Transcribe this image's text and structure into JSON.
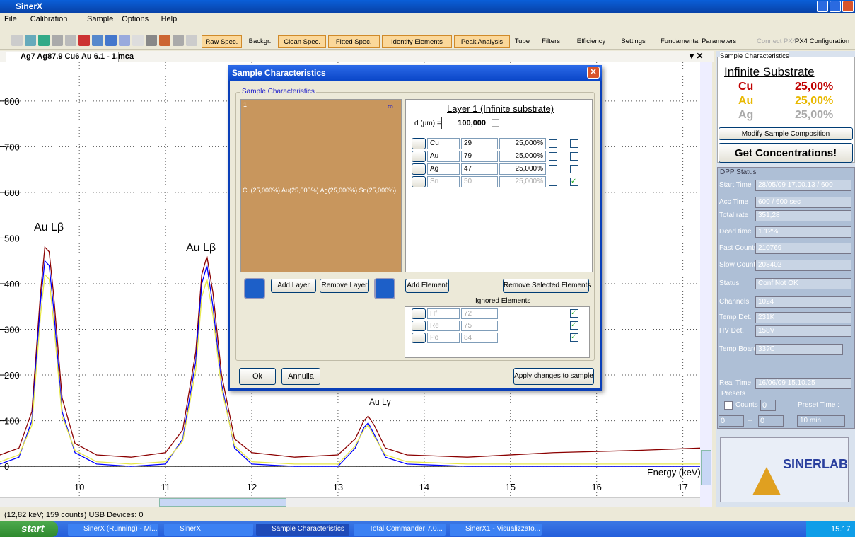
{
  "window": {
    "title": "SinerX"
  },
  "menu": [
    "File",
    "Calibration",
    "Sample",
    "Options",
    "Help"
  ],
  "toolbar": [
    "Raw Spec.",
    "Backgr.",
    "Clean Spec.",
    "Fitted Spec.",
    "Identify Elements",
    "Peak Analysis",
    "Tube",
    "Filters",
    "Efficiency",
    "Settings",
    "Fundamental Parameters"
  ],
  "toolbar_right": [
    "Connect PX4",
    "PX4 Configuration"
  ],
  "tab": {
    "title": "Ag7 Ag87.9 Cu6 Au 6.1 - 1.mca"
  },
  "chart_data": {
    "type": "line",
    "x_label": "Energy (keV)",
    "annotations": [
      "Au Lβ",
      "Au Lβ",
      "Au Lγ"
    ],
    "xlim": [
      9.08,
      17.2
    ],
    "xticks": [
      10,
      11,
      12,
      13,
      14,
      15,
      16,
      17
    ],
    "ylim": [
      -68,
      885
    ],
    "yticks": [
      0,
      100,
      200,
      300,
      400,
      500,
      600,
      700,
      800
    ],
    "grid": true,
    "x": [
      9.08,
      9.3,
      9.45,
      9.55,
      9.6,
      9.65,
      9.7,
      9.8,
      9.95,
      10.2,
      10.6,
      11.0,
      11.2,
      11.35,
      11.42,
      11.48,
      11.55,
      11.65,
      11.8,
      12.0,
      12.5,
      13.0,
      13.2,
      13.3,
      13.35,
      13.42,
      13.55,
      13.8,
      14.5,
      15.5,
      16.5,
      17.2
    ],
    "series": [
      {
        "color": "#8b0000",
        "values": [
          25,
          40,
          120,
          380,
          480,
          470,
          380,
          150,
          50,
          25,
          20,
          30,
          80,
          250,
          420,
          460,
          380,
          200,
          60,
          30,
          20,
          25,
          60,
          100,
          110,
          90,
          40,
          25,
          20,
          30,
          35,
          40
        ]
      },
      {
        "color": "#0000ff",
        "values": [
          5,
          20,
          100,
          360,
          450,
          440,
          350,
          120,
          30,
          5,
          0,
          5,
          60,
          230,
          400,
          440,
          350,
          180,
          40,
          5,
          0,
          0,
          40,
          85,
          95,
          70,
          20,
          5,
          0,
          0,
          0,
          0
        ]
      },
      {
        "color": "#e8e84a",
        "values": [
          10,
          25,
          90,
          330,
          420,
          410,
          320,
          110,
          35,
          10,
          5,
          10,
          55,
          210,
          370,
          410,
          330,
          170,
          45,
          10,
          5,
          5,
          45,
          80,
          90,
          65,
          25,
          10,
          5,
          5,
          5,
          5
        ]
      }
    ]
  },
  "dialog": {
    "title": "Sample Characteristics",
    "group": "Sample Characteristics",
    "layer_index": "1",
    "infinity": "∞",
    "layer_text": "Cu(25,000%) Au(25,000%) Ag(25,000%) Sn(25,000%)",
    "layer_title": "Layer 1 (Infinite substrate)",
    "thickness_label": "d (μm) =",
    "thickness": "100,000",
    "elements": [
      [
        "Cu",
        29,
        "25,000%"
      ],
      [
        "Au",
        79,
        "25,000%"
      ],
      [
        "Ag",
        47,
        "25,000%"
      ],
      [
        "Sn",
        50,
        "25,000%"
      ]
    ],
    "add_layer": "Add Layer",
    "remove_layer": "Remove Layer",
    "add_element": "Add Element",
    "remove_elements": "Remove Selected Elements",
    "ignored_title": "Ignored Elements",
    "ignored": [
      [
        "Hf",
        72
      ],
      [
        "Re",
        75
      ],
      [
        "Po",
        84
      ]
    ],
    "ok": "Ok",
    "cancel": "Annulla",
    "apply": "Apply changes to sample"
  },
  "sidebar": {
    "group": "Sample Characteristics",
    "substrate": "Infinite Substrate",
    "composition": [
      [
        "Cu",
        "25,00%"
      ],
      [
        "Au",
        "25,00%"
      ],
      [
        "Ag",
        "25,00%"
      ]
    ],
    "modify": "Modify Sample Composition",
    "get": "Get Concentrations!",
    "dpp": "DPP Status",
    "fields": [
      [
        "Start Time",
        "28/05/09 17.00.13 / 600"
      ],
      [
        "Acc Time",
        "600 / 600 sec"
      ],
      [
        "Total rate",
        "351,28"
      ],
      [
        "Dead time",
        "1.12%"
      ],
      [
        "Fast Counts",
        "210769"
      ],
      [
        "Slow Counts",
        "208402"
      ],
      [
        "Status",
        "Conf Not OK"
      ],
      [
        "Channels",
        "1024"
      ],
      [
        "Temp Det.",
        "231K"
      ],
      [
        "HV Det.",
        "158V"
      ],
      [
        "Temp Board",
        "33?C"
      ],
      [
        "Real Time",
        "16/06/09 15.10.25"
      ]
    ],
    "presets": "Presets",
    "counts": "Counts",
    "counts_value": "0",
    "preset_time": "Preset Time :",
    "range_from": "0",
    "range_dash": "--",
    "range_to": "0",
    "time_value": "10 min",
    "logo": "SINERLAB"
  },
  "status": "(12,82 keV; 159 counts) USB Devices: 0",
  "taskbar": {
    "start": "start",
    "items": [
      "SinerX (Running) - Mi...",
      "SinerX",
      "Sample Characteristics",
      "Total Commander 7.0...",
      "SinerX1 - Visualizzato..."
    ],
    "clock": "15.17"
  }
}
